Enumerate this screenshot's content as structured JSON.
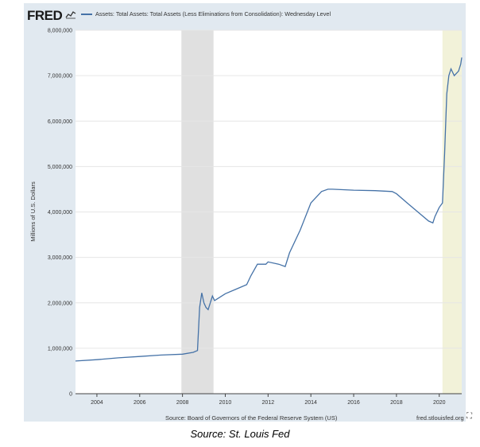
{
  "header": {
    "logo_text": "FRED",
    "logo_icon": "chart-line-icon",
    "series_title": "Assets: Total Assets: Total Assets (Less Eliminations from Consolidation): Wednesday Level"
  },
  "footer": {
    "source": "Source: Board of Governors of the Federal Reserve System (US)",
    "url": "fred.stlouisfed.org",
    "expand_icon": "expand-icon"
  },
  "caption": "Source: St. Louis Fed",
  "colors": {
    "line": "#4572a7",
    "recession_shade": "#e0e0e0",
    "current_shade": "#f2f2d9",
    "frame": "#e1e9f0"
  },
  "chart_data": {
    "type": "line",
    "title": "",
    "ylabel": "Millions of U.S. Dollars",
    "xlim": [
      2003.0,
      2021.05
    ],
    "ylim": [
      0,
      8000000
    ],
    "x_ticks": [
      "2004",
      "2006",
      "2008",
      "2010",
      "2012",
      "2014",
      "2016",
      "2018",
      "2020"
    ],
    "y_ticks": [
      "0",
      "1,000,000",
      "2,000,000",
      "3,000,000",
      "4,000,000",
      "5,000,000",
      "6,000,000",
      "7,000,000",
      "8,000,000"
    ],
    "grid": true,
    "shaded_periods": [
      {
        "start": 2007.95,
        "end": 2009.45
      },
      {
        "start": 2020.15,
        "end": 2021.05
      }
    ],
    "series": [
      {
        "x": [
          2003.0,
          2004.0,
          2005.0,
          2006.0,
          2007.0,
          2008.0,
          2008.5,
          2008.7,
          2008.8,
          2008.9,
          2009.0,
          2009.1,
          2009.2,
          2009.3,
          2009.4,
          2009.5,
          2010.0,
          2010.5,
          2011.0,
          2011.2,
          2011.5,
          2011.9,
          2012.0,
          2012.5,
          2012.8,
          2013.0,
          2013.5,
          2014.0,
          2014.5,
          2014.8,
          2015.0,
          2016.0,
          2017.0,
          2017.8,
          2018.0,
          2018.5,
          2019.0,
          2019.5,
          2019.7,
          2019.8,
          2020.0,
          2020.15,
          2020.25,
          2020.35,
          2020.45,
          2020.55,
          2020.7,
          2020.9,
          2021.0,
          2021.05
        ],
        "y": [
          720000,
          750000,
          790000,
          820000,
          850000,
          870000,
          910000,
          950000,
          1900000,
          2220000,
          2000000,
          1900000,
          1850000,
          2000000,
          2150000,
          2050000,
          2200000,
          2300000,
          2400000,
          2600000,
          2850000,
          2850000,
          2900000,
          2850000,
          2800000,
          3100000,
          3600000,
          4200000,
          4450000,
          4500000,
          4500000,
          4480000,
          4470000,
          4450000,
          4400000,
          4200000,
          4000000,
          3800000,
          3760000,
          3900000,
          4100000,
          4200000,
          5300000,
          6600000,
          7000000,
          7150000,
          7000000,
          7100000,
          7250000,
          7400000
        ]
      }
    ]
  }
}
